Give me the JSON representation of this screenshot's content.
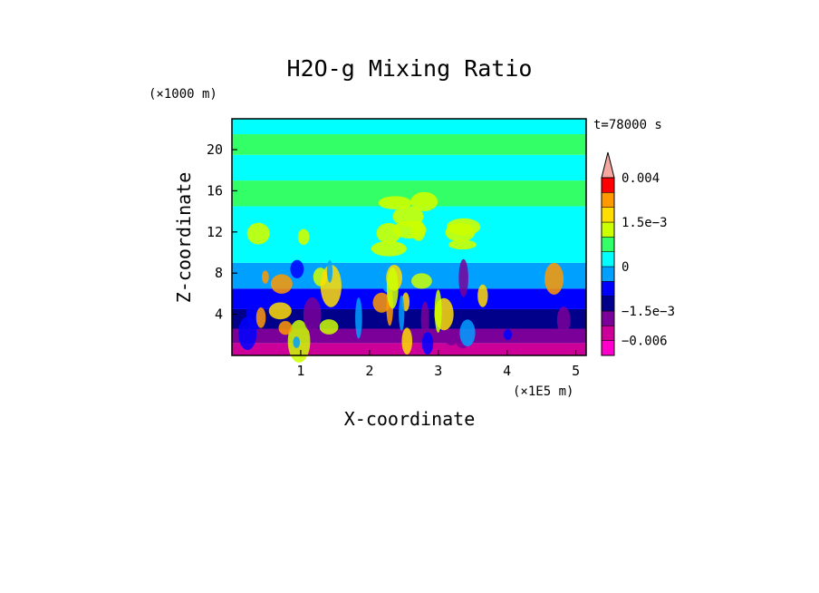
{
  "chart_data": {
    "type": "heatmap",
    "title": "H2O-g Mixing Ratio",
    "xlabel": "X-coordinate",
    "ylabel": "Z-coordinate",
    "x_scale_note": "(×1E5 m)",
    "y_scale_note": "(×1000 m)",
    "time_label": "t=78000 s",
    "xlim": [
      0,
      5.15
    ],
    "ylim": [
      0,
      23
    ],
    "x_ticks": [
      {
        "value": 1,
        "label": "1"
      },
      {
        "value": 2,
        "label": "2"
      },
      {
        "value": 3,
        "label": "3"
      },
      {
        "value": 4,
        "label": "4"
      },
      {
        "value": 5,
        "label": "5"
      }
    ],
    "y_ticks": [
      {
        "value": 4,
        "label": "4"
      },
      {
        "value": 8,
        "label": "8"
      },
      {
        "value": 12,
        "label": "12"
      },
      {
        "value": 16,
        "label": "16"
      },
      {
        "value": 20,
        "label": "20"
      }
    ],
    "colorbar": {
      "levels": [
        -0.009,
        -0.006,
        -0.003,
        -0.0015,
        -0.001,
        -0.0005,
        0,
        0.0005,
        0.001,
        0.0015,
        0.002,
        0.003,
        0.004
      ],
      "colors": [
        "#ff00cc",
        "#cc0099",
        "#7a0099",
        "#00008b",
        "#0000ff",
        "#00a0ff",
        "#00ffff",
        "#33ff66",
        "#ccff00",
        "#ffdd00",
        "#ff9900",
        "#ff0000",
        "#f4a8a0"
      ],
      "tick_labels": [
        {
          "value": 0.004,
          "label": "0.004"
        },
        {
          "value": 0.0015,
          "label": "1.5e−3"
        },
        {
          "value": 0,
          "label": "0"
        },
        {
          "value": -0.0015,
          "label": "−1.5e−3"
        },
        {
          "value": -0.006,
          "label": "−0.006"
        }
      ]
    },
    "field_bands": [
      {
        "z": [
          0,
          1.2
        ],
        "value": -0.005
      },
      {
        "z": [
          1.2,
          2.6
        ],
        "value": -0.0025
      },
      {
        "z": [
          2.6,
          4.5
        ],
        "value": -0.0015
      },
      {
        "z": [
          4.5,
          6.5
        ],
        "value": -0.001
      },
      {
        "z": [
          6.5,
          9
        ],
        "value": -0.0003
      },
      {
        "z": [
          9,
          14.5
        ],
        "value": 0.0002
      },
      {
        "z": [
          14.5,
          17
        ],
        "value": 0.0008
      },
      {
        "z": [
          17,
          19.5
        ],
        "value": 0.0004
      },
      {
        "z": [
          19.5,
          21.5
        ],
        "value": 0.0008
      },
      {
        "z": [
          21.5,
          23
        ],
        "value": 0.0004
      }
    ]
  }
}
